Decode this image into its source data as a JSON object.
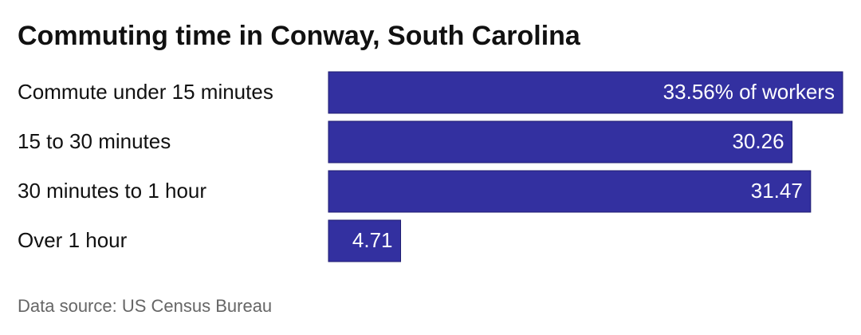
{
  "chart_data": {
    "type": "bar",
    "orientation": "horizontal",
    "title": "Commuting time in Conway, South Carolina",
    "categories": [
      "Commute under 15 minutes",
      "15 to 30 minutes",
      "30 minutes to 1 hour",
      "Over 1 hour"
    ],
    "values": [
      33.56,
      30.26,
      31.47,
      4.71
    ],
    "value_labels": [
      "33.56% of workers",
      "30.26",
      "31.47",
      "4.71"
    ],
    "color": "#3330a0",
    "source": "Data source: US Census Bureau"
  }
}
